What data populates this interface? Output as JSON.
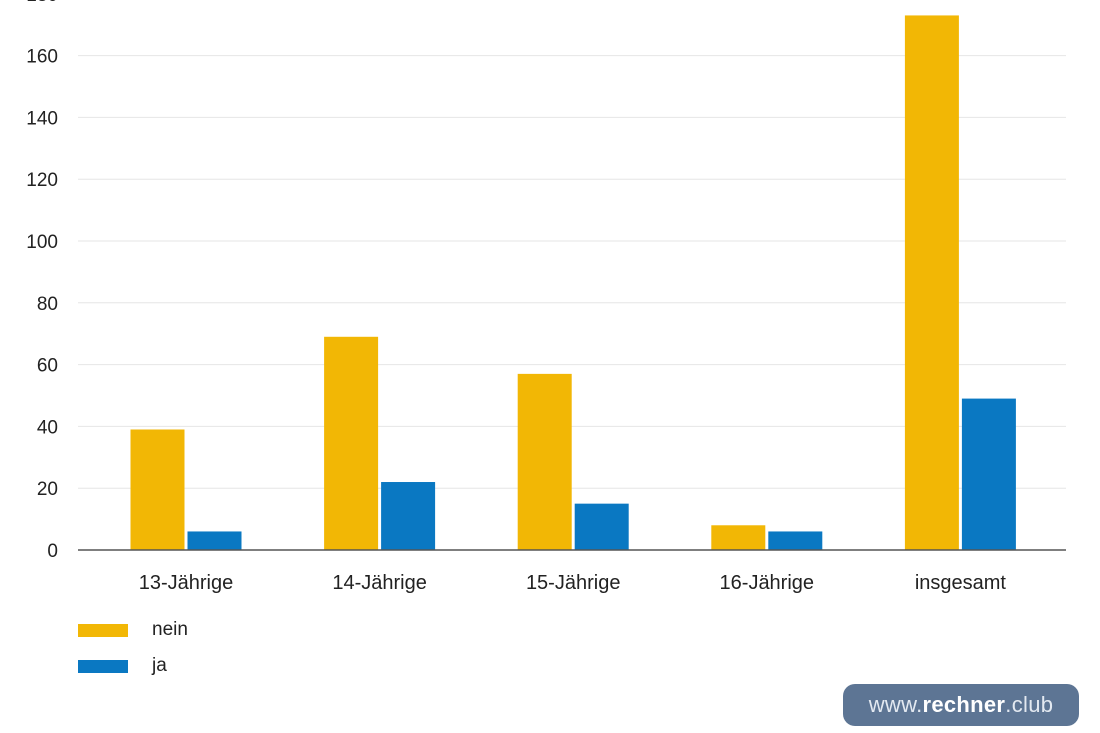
{
  "chart_data": {
    "type": "bar",
    "categories": [
      "13-Jährige",
      "14-Jährige",
      "15-Jährige",
      "16-Jährige",
      "insgesamt"
    ],
    "series": [
      {
        "name": "nein",
        "color": "#f2b705",
        "values": [
          39,
          69,
          57,
          8,
          173
        ]
      },
      {
        "name": "ja",
        "color": "#0a78c2",
        "values": [
          6,
          22,
          15,
          6,
          49
        ]
      }
    ],
    "yticks": [
      0,
      20,
      40,
      60,
      80,
      100,
      120,
      140,
      160
    ],
    "ylim": [
      0,
      180
    ],
    "grid": true,
    "legend_position": "bottom-left"
  },
  "watermark": {
    "prefix": "www.",
    "brand": "rechner",
    "suffix": ".club"
  }
}
